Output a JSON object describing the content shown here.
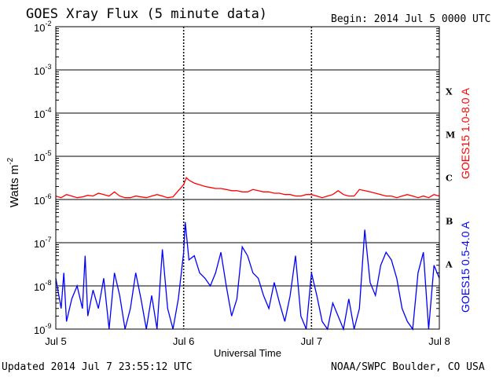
{
  "header": {
    "title": "GOES Xray Flux (5 minute data)",
    "begin": "Begin:  2014 Jul 5 0000 UTC"
  },
  "footer": {
    "updated": "Updated 2014 Jul  7 23:55:12 UTC",
    "credit": "NOAA/SWPC Boulder, CO USA"
  },
  "chart_data": {
    "type": "line",
    "title": "GOES Xray Flux (5 minute data)",
    "xlabel": "Universal Time",
    "ylabel": "Watts m",
    "ylabel_superscript": "-2",
    "y_scale": "log",
    "ylim": [
      1e-09,
      0.01
    ],
    "xlim": [
      0,
      72
    ],
    "x_unit": "hours since 2014 Jul 5 0000 UTC",
    "y_ticks": [
      {
        "value": 0.01,
        "base": "10",
        "exp": "-2"
      },
      {
        "value": 0.001,
        "base": "10",
        "exp": "-3"
      },
      {
        "value": 0.0001,
        "base": "10",
        "exp": "-4"
      },
      {
        "value": 1e-05,
        "base": "10",
        "exp": "-5"
      },
      {
        "value": 1e-06,
        "base": "10",
        "exp": "-6"
      },
      {
        "value": 1e-07,
        "base": "10",
        "exp": "-7"
      },
      {
        "value": 1e-08,
        "base": "10",
        "exp": "-8"
      },
      {
        "value": 1e-09,
        "base": "10",
        "exp": "-9"
      }
    ],
    "x_ticks": [
      {
        "value": 0,
        "label": "Jul 5"
      },
      {
        "value": 24,
        "label": "Jul 6"
      },
      {
        "value": 48,
        "label": "Jul 7"
      },
      {
        "value": 72,
        "label": "Jul 8"
      }
    ],
    "flare_classes": [
      {
        "label": "X",
        "lower": 0.0001,
        "upper": 0.001
      },
      {
        "label": "M",
        "lower": 1e-05,
        "upper": 0.0001
      },
      {
        "label": "C",
        "lower": 1e-06,
        "upper": 1e-05
      },
      {
        "label": "B",
        "lower": 1e-07,
        "upper": 1e-06
      },
      {
        "label": "A",
        "lower": 1e-08,
        "upper": 1e-07
      }
    ],
    "grid": "horizontal at each decade, dashed vertical at day boundaries",
    "legend_placement": "right (vertical labels)",
    "series": [
      {
        "name": "GOES15 1.0-8.0 A",
        "color": "#ff0000",
        "points": [
          [
            0,
            1.2e-06
          ],
          [
            1,
            1.1e-06
          ],
          [
            2,
            1.3e-06
          ],
          [
            3,
            1.2e-06
          ],
          [
            4,
            1.1e-06
          ],
          [
            5,
            1.15e-06
          ],
          [
            6,
            1.25e-06
          ],
          [
            7,
            1.2e-06
          ],
          [
            8,
            1.4e-06
          ],
          [
            9,
            1.3e-06
          ],
          [
            10,
            1.2e-06
          ],
          [
            11,
            1.5e-06
          ],
          [
            12,
            1.2e-06
          ],
          [
            13,
            1.1e-06
          ],
          [
            14,
            1.1e-06
          ],
          [
            15,
            1.2e-06
          ],
          [
            16,
            1.15e-06
          ],
          [
            17,
            1.1e-06
          ],
          [
            18,
            1.2e-06
          ],
          [
            19,
            1.3e-06
          ],
          [
            20,
            1.2e-06
          ],
          [
            21,
            1.1e-06
          ],
          [
            22,
            1.15e-06
          ],
          [
            23,
            1.6e-06
          ],
          [
            24,
            2.2e-06
          ],
          [
            24.5,
            3.2e-06
          ],
          [
            25,
            2.8e-06
          ],
          [
            26,
            2.4e-06
          ],
          [
            27,
            2.2e-06
          ],
          [
            28,
            2e-06
          ],
          [
            29,
            1.9e-06
          ],
          [
            30,
            1.8e-06
          ],
          [
            31,
            1.8e-06
          ],
          [
            32,
            1.7e-06
          ],
          [
            33,
            1.6e-06
          ],
          [
            34,
            1.6e-06
          ],
          [
            35,
            1.5e-06
          ],
          [
            36,
            1.5e-06
          ],
          [
            37,
            1.7e-06
          ],
          [
            38,
            1.6e-06
          ],
          [
            39,
            1.5e-06
          ],
          [
            40,
            1.5e-06
          ],
          [
            41,
            1.4e-06
          ],
          [
            42,
            1.4e-06
          ],
          [
            43,
            1.3e-06
          ],
          [
            44,
            1.3e-06
          ],
          [
            45,
            1.2e-06
          ],
          [
            46,
            1.2e-06
          ],
          [
            47,
            1.3e-06
          ],
          [
            48,
            1.3e-06
          ],
          [
            49,
            1.2e-06
          ],
          [
            50,
            1.1e-06
          ],
          [
            51,
            1.2e-06
          ],
          [
            52,
            1.3e-06
          ],
          [
            53,
            1.6e-06
          ],
          [
            54,
            1.3e-06
          ],
          [
            55,
            1.2e-06
          ],
          [
            56,
            1.2e-06
          ],
          [
            57,
            1.7e-06
          ],
          [
            58,
            1.6e-06
          ],
          [
            59,
            1.5e-06
          ],
          [
            60,
            1.4e-06
          ],
          [
            61,
            1.3e-06
          ],
          [
            62,
            1.2e-06
          ],
          [
            63,
            1.2e-06
          ],
          [
            64,
            1.1e-06
          ],
          [
            65,
            1.2e-06
          ],
          [
            66,
            1.3e-06
          ],
          [
            67,
            1.2e-06
          ],
          [
            68,
            1.1e-06
          ],
          [
            69,
            1.2e-06
          ],
          [
            70,
            1.1e-06
          ],
          [
            71,
            1.3e-06
          ],
          [
            72,
            1.2e-06
          ]
        ]
      },
      {
        "name": "GOES15 0.5-4.0 A",
        "color": "#0000ff",
        "points": [
          [
            0,
            1.5e-08
          ],
          [
            1,
            3e-09
          ],
          [
            1.5,
            2e-08
          ],
          [
            2,
            1.5e-09
          ],
          [
            3,
            5e-09
          ],
          [
            4,
            1e-08
          ],
          [
            5,
            3e-09
          ],
          [
            5.5,
            5e-08
          ],
          [
            6,
            2e-09
          ],
          [
            7,
            8e-09
          ],
          [
            8,
            3e-09
          ],
          [
            9,
            1.5e-08
          ],
          [
            10,
            1e-09
          ],
          [
            11,
            2e-08
          ],
          [
            12,
            6e-09
          ],
          [
            13,
            1e-09
          ],
          [
            14,
            3e-09
          ],
          [
            15,
            2e-08
          ],
          [
            16,
            5e-09
          ],
          [
            17,
            1e-09
          ],
          [
            18,
            6e-09
          ],
          [
            19,
            1e-09
          ],
          [
            20,
            7e-08
          ],
          [
            21,
            3e-09
          ],
          [
            22,
            1e-09
          ],
          [
            23,
            5e-09
          ],
          [
            24,
            6e-08
          ],
          [
            24.3,
            3e-07
          ],
          [
            25,
            4e-08
          ],
          [
            26,
            5e-08
          ],
          [
            27,
            2e-08
          ],
          [
            28,
            1.5e-08
          ],
          [
            29,
            1e-08
          ],
          [
            30,
            2e-08
          ],
          [
            31,
            6e-08
          ],
          [
            32,
            1e-08
          ],
          [
            33,
            2e-09
          ],
          [
            34,
            5e-09
          ],
          [
            35,
            8e-08
          ],
          [
            36,
            5e-08
          ],
          [
            37,
            2e-08
          ],
          [
            38,
            1.5e-08
          ],
          [
            39,
            6e-09
          ],
          [
            40,
            3e-09
          ],
          [
            41,
            1.2e-08
          ],
          [
            42,
            4e-09
          ],
          [
            43,
            1.5e-09
          ],
          [
            44,
            6e-09
          ],
          [
            45,
            5e-08
          ],
          [
            46,
            2e-09
          ],
          [
            47,
            1e-09
          ],
          [
            48,
            2e-08
          ],
          [
            49,
            6e-09
          ],
          [
            50,
            1.5e-09
          ],
          [
            51,
            1e-09
          ],
          [
            52,
            4e-09
          ],
          [
            53,
            2e-09
          ],
          [
            54,
            1e-09
          ],
          [
            55,
            5e-09
          ],
          [
            56,
            1e-09
          ],
          [
            57,
            3e-09
          ],
          [
            58,
            2e-07
          ],
          [
            59,
            1.2e-08
          ],
          [
            60,
            6e-09
          ],
          [
            61,
            3e-08
          ],
          [
            62,
            6e-08
          ],
          [
            63,
            4e-08
          ],
          [
            64,
            1.5e-08
          ],
          [
            65,
            3e-09
          ],
          [
            66,
            1.5e-09
          ],
          [
            67,
            1e-09
          ],
          [
            68,
            2e-08
          ],
          [
            69,
            6e-08
          ],
          [
            70,
            1e-09
          ],
          [
            71,
            3e-08
          ],
          [
            72,
            1.5e-08
          ]
        ]
      }
    ]
  }
}
